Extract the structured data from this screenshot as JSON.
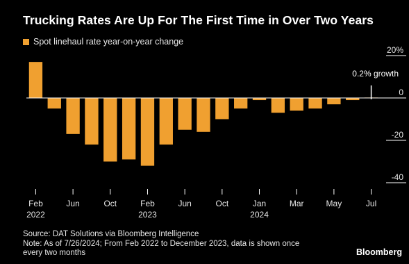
{
  "title": "Trucking Rates Are Up For The First Time in Over Two Years",
  "legend": {
    "label": "Spot linehaul rate year-on-year change",
    "color": "#f0a030"
  },
  "annotation": "0.2% growth",
  "footer": {
    "source": "Source: DAT Solutions via Bloomberg Intelligence",
    "note_line1": "Note: As of 7/26/2024; From Feb 2022 to December 2023, data is shown once",
    "note_line2": "every two months"
  },
  "brand": "Bloomberg",
  "chart_data": {
    "type": "bar",
    "series": [
      {
        "name": "Spot linehaul rate year-on-year change",
        "x": [
          "2022-02",
          "2022-04",
          "2022-06",
          "2022-08",
          "2022-10",
          "2022-12",
          "2023-02",
          "2023-04",
          "2023-06",
          "2023-08",
          "2023-10",
          "2023-12",
          "2024-01",
          "2024-02",
          "2024-03",
          "2024-04",
          "2024-05",
          "2024-06",
          "2024-07"
        ],
        "values": [
          17,
          -5,
          -17,
          -22,
          -30,
          -29,
          -32,
          -22,
          -15,
          -16,
          -10,
          -5,
          -1,
          -7,
          -6,
          -5,
          -3,
          -1,
          0.2
        ]
      }
    ],
    "x_ticks": [
      {
        "x": "2022-02",
        "label": "Feb",
        "sub": "2022"
      },
      {
        "x": "2022-06",
        "label": "Jun",
        "sub": ""
      },
      {
        "x": "2022-10",
        "label": "Oct",
        "sub": ""
      },
      {
        "x": "2023-02",
        "label": "Feb",
        "sub": "2023"
      },
      {
        "x": "2023-06",
        "label": "Jun",
        "sub": ""
      },
      {
        "x": "2023-10",
        "label": "Oct",
        "sub": ""
      },
      {
        "x": "2024-01",
        "label": "Jan",
        "sub": "2024"
      },
      {
        "x": "2024-03",
        "label": "Mar",
        "sub": ""
      },
      {
        "x": "2024-05",
        "label": "May",
        "sub": ""
      },
      {
        "x": "2024-07",
        "label": "Jul",
        "sub": ""
      }
    ],
    "y_ticks": [
      {
        "value": 20,
        "label": "20%"
      },
      {
        "value": 0,
        "label": "0"
      },
      {
        "value": -20,
        "label": "-20"
      },
      {
        "value": -40,
        "label": "-40"
      }
    ],
    "ylim": [
      -40,
      20
    ],
    "y_axis_position": "right",
    "grid": false,
    "colors": {
      "bar": "#f0a030",
      "axis": "#ffffff",
      "text": "#ffffff"
    }
  }
}
